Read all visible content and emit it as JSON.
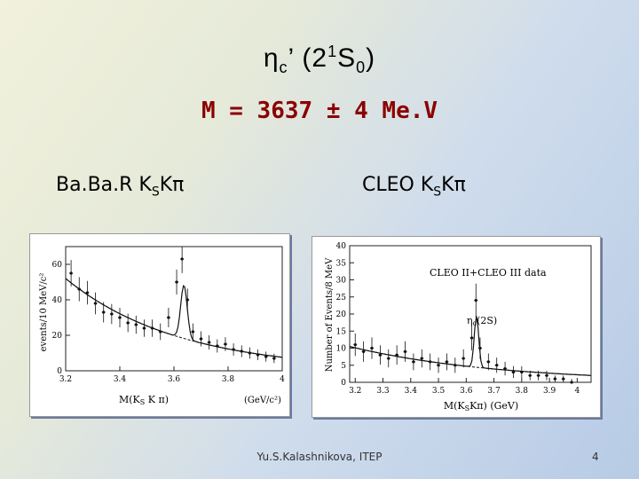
{
  "title": {
    "eta": "η",
    "sub_c": "c",
    "prime": "’ (2",
    "sup_1": "1",
    "s": "S",
    "sub_0": "0",
    "close": ")"
  },
  "mass_line": "M = 3637 ± 4 Me.V",
  "babar": {
    "label_pre": "Ba.Ba.R  K",
    "label_sub": "S",
    "label_post": "Kπ",
    "y_axis": "events/10 MeV/c²",
    "x_axis": "M(K",
    "x_axis_sub": "S",
    "x_axis_post": " K π)",
    "x_units": "(GeV/c²)",
    "x_ticks": [
      "3.2",
      "3.4",
      "3.6",
      "3.8",
      "4"
    ],
    "y_ticks": [
      "0",
      "20",
      "40",
      "60"
    ],
    "chart_data": {
      "type": "scatter",
      "xlim": [
        3.2,
        4.0
      ],
      "ylim": [
        0,
        70
      ],
      "x": [
        3.22,
        3.25,
        3.28,
        3.31,
        3.34,
        3.37,
        3.4,
        3.43,
        3.46,
        3.49,
        3.52,
        3.55,
        3.58,
        3.61,
        3.63,
        3.65,
        3.67,
        3.7,
        3.73,
        3.76,
        3.79,
        3.82,
        3.85,
        3.88,
        3.91,
        3.94,
        3.97
      ],
      "y": [
        55,
        46,
        44,
        38,
        33,
        32,
        30,
        27,
        26,
        24,
        24,
        22,
        30,
        50,
        63,
        40,
        22,
        18,
        16,
        14,
        15,
        12,
        11,
        10,
        9,
        8,
        7
      ]
    }
  },
  "cleo": {
    "label_pre": "CLEO  K",
    "label_sub": "S",
    "label_post": "Kπ",
    "y_axis": "Number of Events/8 MeV",
    "legend": "CLEO II+CLEO III data",
    "peak_label": "η",
    "peak_label_sub": "c",
    "peak_label_post": "(2S)",
    "x_axis": "M(K",
    "x_axis_sub": "S",
    "x_axis_post": "Kπ)  (GeV)",
    "x_ticks": [
      "3.2",
      "3.3",
      "3.4",
      "3.5",
      "3.6",
      "3.7",
      "3.8",
      "3.9",
      "4"
    ],
    "y_ticks": [
      "0",
      "5",
      "10",
      "15",
      "20",
      "25",
      "30",
      "35",
      "40"
    ],
    "chart_data": {
      "type": "scatter",
      "xlim": [
        3.18,
        4.05
      ],
      "ylim": [
        0,
        40
      ],
      "x": [
        3.2,
        3.23,
        3.26,
        3.29,
        3.32,
        3.35,
        3.38,
        3.41,
        3.44,
        3.47,
        3.5,
        3.53,
        3.56,
        3.59,
        3.62,
        3.635,
        3.65,
        3.68,
        3.71,
        3.74,
        3.77,
        3.8,
        3.83,
        3.86,
        3.89,
        3.92,
        3.95,
        3.98
      ],
      "y": [
        11,
        9,
        10,
        8,
        7,
        8,
        9,
        6,
        7,
        6,
        5,
        6,
        5,
        7,
        13,
        24,
        10,
        6,
        5,
        4,
        3,
        3,
        2,
        2,
        2,
        1,
        1,
        0
      ]
    }
  },
  "footer": {
    "author": "Yu.S.Kalashnikova, ITEP",
    "page": "4"
  }
}
